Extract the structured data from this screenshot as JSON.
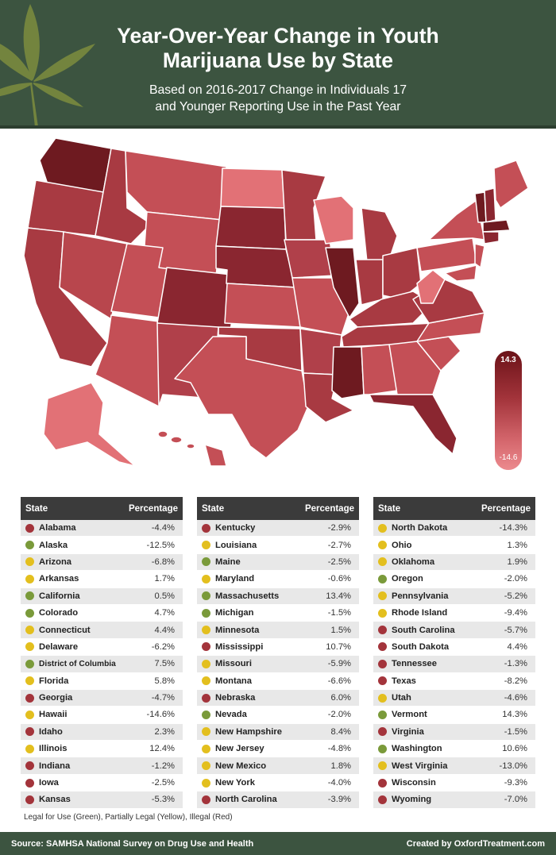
{
  "header": {
    "title_line1": "Year-Over-Year Change in Youth",
    "title_line2": "Marijuana Use by State",
    "subtitle_line1": "Based on 2016-2017 Change in Individuals 17",
    "subtitle_line2": "and Younger Reporting Use in the Past Year"
  },
  "legend": {
    "max": "14.3",
    "min": "-14.6"
  },
  "colors": {
    "green": "#7a9a3a",
    "yellow": "#e3bf1e",
    "red": "#a3343b",
    "header": "#3c5440"
  },
  "table": {
    "col_state": "State",
    "col_pct": "Percentage"
  },
  "chart_data": {
    "type": "table",
    "columns": [
      "State",
      "Percentage"
    ],
    "rows": [
      {
        "state": "Alabama",
        "status": "red",
        "pct": "-4.4%"
      },
      {
        "state": "Alaska",
        "status": "green",
        "pct": "-12.5%"
      },
      {
        "state": "Arizona",
        "status": "yellow",
        "pct": "-6.8%"
      },
      {
        "state": "Arkansas",
        "status": "yellow",
        "pct": "1.7%"
      },
      {
        "state": "California",
        "status": "green",
        "pct": "0.5%"
      },
      {
        "state": "Colorado",
        "status": "green",
        "pct": "4.7%"
      },
      {
        "state": "Connecticut",
        "status": "yellow",
        "pct": "4.4%"
      },
      {
        "state": "Delaware",
        "status": "yellow",
        "pct": "-6.2%"
      },
      {
        "state": "District of Columbia",
        "status": "green",
        "pct": "7.5%"
      },
      {
        "state": "Florida",
        "status": "yellow",
        "pct": "5.8%"
      },
      {
        "state": "Georgia",
        "status": "red",
        "pct": "-4.7%"
      },
      {
        "state": "Hawaii",
        "status": "yellow",
        "pct": "-14.6%"
      },
      {
        "state": "Idaho",
        "status": "red",
        "pct": "2.3%"
      },
      {
        "state": "Illinois",
        "status": "yellow",
        "pct": "12.4%"
      },
      {
        "state": "Indiana",
        "status": "red",
        "pct": "-1.2%"
      },
      {
        "state": "Iowa",
        "status": "red",
        "pct": "-2.5%"
      },
      {
        "state": "Kansas",
        "status": "red",
        "pct": "-5.3%"
      },
      {
        "state": "Kentucky",
        "status": "red",
        "pct": "-2.9%"
      },
      {
        "state": "Louisiana",
        "status": "yellow",
        "pct": "-2.7%"
      },
      {
        "state": "Maine",
        "status": "green",
        "pct": "-2.5%"
      },
      {
        "state": "Maryland",
        "status": "yellow",
        "pct": "-0.6%"
      },
      {
        "state": "Massachusetts",
        "status": "green",
        "pct": "13.4%"
      },
      {
        "state": "Michigan",
        "status": "green",
        "pct": "-1.5%"
      },
      {
        "state": "Minnesota",
        "status": "yellow",
        "pct": "1.5%"
      },
      {
        "state": "Mississippi",
        "status": "red",
        "pct": "10.7%"
      },
      {
        "state": "Missouri",
        "status": "yellow",
        "pct": "-5.9%"
      },
      {
        "state": "Montana",
        "status": "yellow",
        "pct": "-6.6%"
      },
      {
        "state": "Nebraska",
        "status": "red",
        "pct": "6.0%"
      },
      {
        "state": "Nevada",
        "status": "green",
        "pct": "-2.0%"
      },
      {
        "state": "New Hampshire",
        "status": "yellow",
        "pct": "8.4%"
      },
      {
        "state": "New Jersey",
        "status": "yellow",
        "pct": "-4.8%"
      },
      {
        "state": "New Mexico",
        "status": "yellow",
        "pct": "1.8%"
      },
      {
        "state": "New York",
        "status": "yellow",
        "pct": "-4.0%"
      },
      {
        "state": "North Carolina",
        "status": "red",
        "pct": "-3.9%"
      },
      {
        "state": "North Dakota",
        "status": "yellow",
        "pct": "-14.3%"
      },
      {
        "state": "Ohio",
        "status": "yellow",
        "pct": "1.3%"
      },
      {
        "state": "Oklahoma",
        "status": "yellow",
        "pct": "1.9%"
      },
      {
        "state": "Oregon",
        "status": "green",
        "pct": "-2.0%"
      },
      {
        "state": "Pennsylvania",
        "status": "yellow",
        "pct": "-5.2%"
      },
      {
        "state": "Rhode Island",
        "status": "yellow",
        "pct": "-9.4%"
      },
      {
        "state": "South Carolina",
        "status": "red",
        "pct": "-5.7%"
      },
      {
        "state": "South Dakota",
        "status": "red",
        "pct": "4.4%"
      },
      {
        "state": "Tennessee",
        "status": "red",
        "pct": "-1.3%"
      },
      {
        "state": "Texas",
        "status": "red",
        "pct": "-8.2%"
      },
      {
        "state": "Utah",
        "status": "yellow",
        "pct": "-4.6%"
      },
      {
        "state": "Vermont",
        "status": "green",
        "pct": "14.3%"
      },
      {
        "state": "Virginia",
        "status": "red",
        "pct": "-1.5%"
      },
      {
        "state": "Washington",
        "status": "green",
        "pct": "10.6%"
      },
      {
        "state": "West Virginia",
        "status": "yellow",
        "pct": "-13.0%"
      },
      {
        "state": "Wisconsin",
        "status": "red",
        "pct": "-9.3%"
      },
      {
        "state": "Wyoming",
        "status": "red",
        "pct": "-7.0%"
      }
    ]
  },
  "note": "Legal for Use (Green), Partially Legal (Yellow), Illegal (Red)",
  "footer": {
    "source": "Source: SAMHSA National Survey on Drug Use and Health",
    "credit": "Created by OxfordTreatment.com"
  }
}
